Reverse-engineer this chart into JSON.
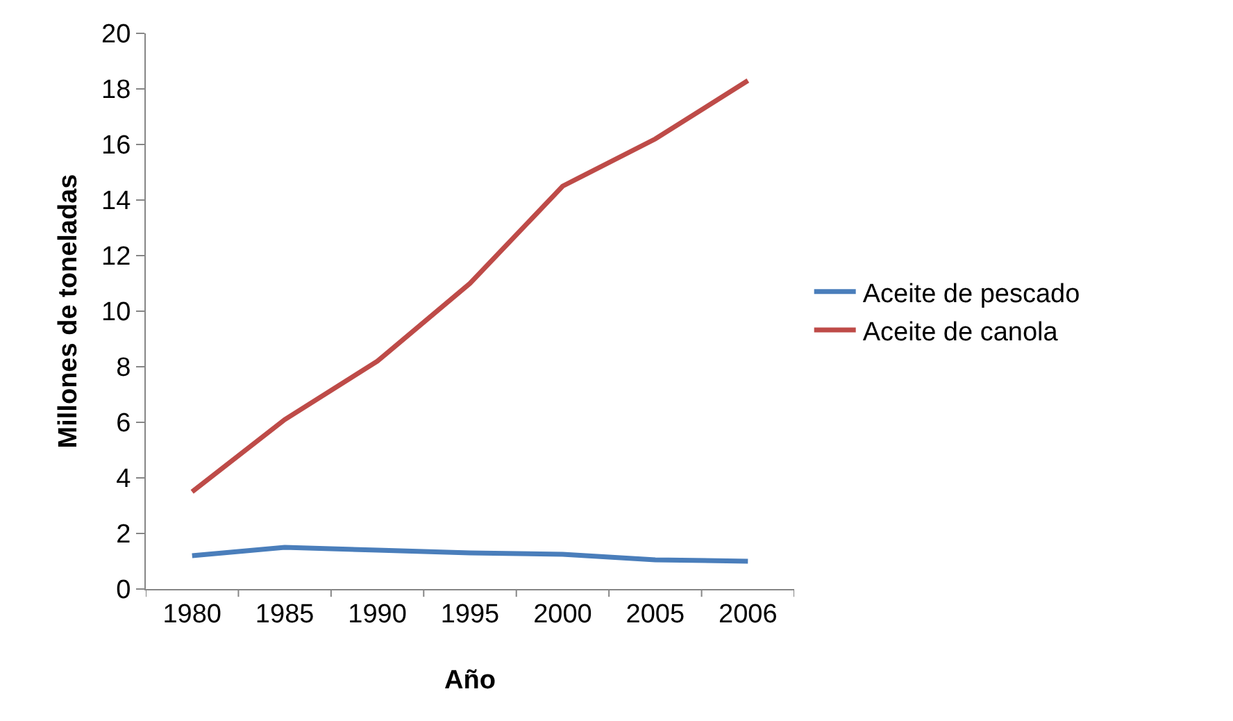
{
  "chart_data": {
    "type": "line",
    "xlabel": "Año",
    "ylabel": "Millones de toneladas",
    "categories": [
      "1980",
      "1985",
      "1990",
      "1995",
      "2000",
      "2005",
      "2006"
    ],
    "series": [
      {
        "name": "Aceite de pescado",
        "color": "#4a7ebb",
        "values": [
          1.2,
          1.5,
          1.4,
          1.3,
          1.25,
          1.05,
          1.0
        ]
      },
      {
        "name": "Aceite de canola",
        "color": "#be4b48",
        "values": [
          3.5,
          6.1,
          8.2,
          11.0,
          14.5,
          16.2,
          18.3
        ]
      }
    ],
    "ylim": [
      0,
      20
    ],
    "yticks": [
      0,
      2,
      4,
      6,
      8,
      10,
      12,
      14,
      16,
      18,
      20
    ],
    "grid": false,
    "legend": "right",
    "marker": "none",
    "line_style": "solid"
  }
}
